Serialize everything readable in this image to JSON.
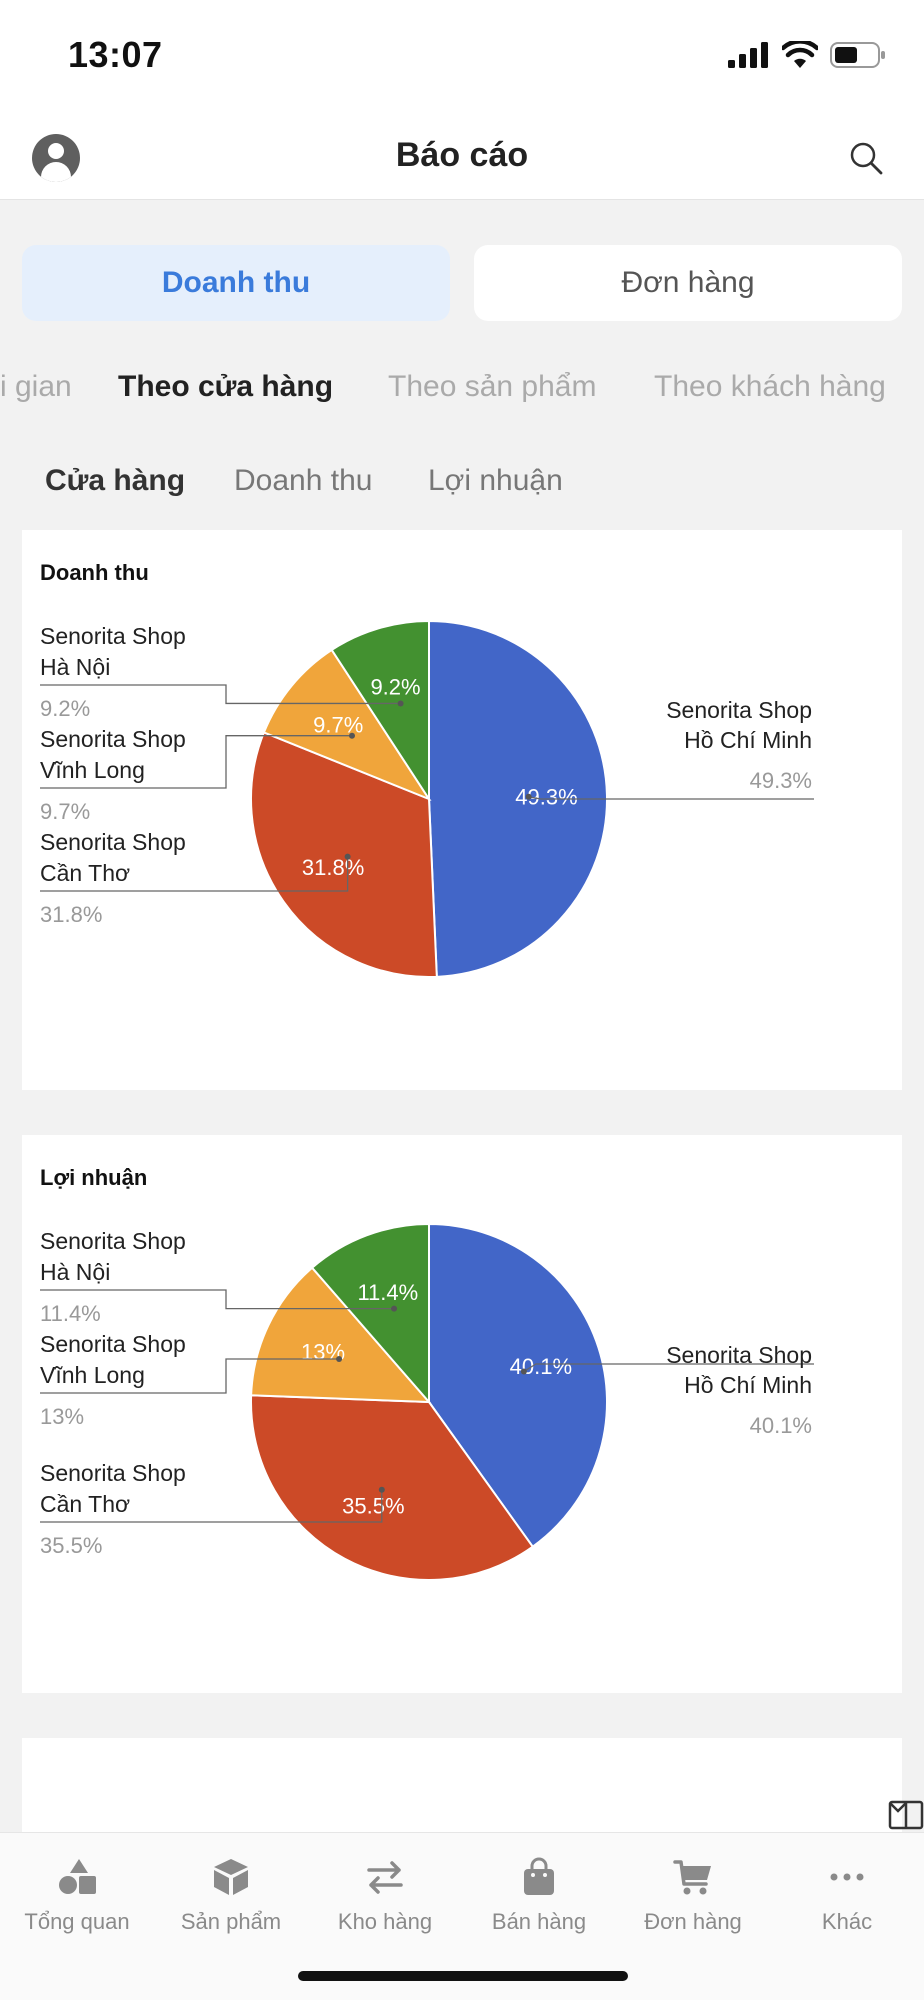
{
  "status_bar": {
    "time": "13:07",
    "icons": [
      "signal-icon",
      "wifi-icon",
      "battery-icon"
    ]
  },
  "header": {
    "title": "Báo cáo",
    "left_icon": "user-avatar-icon",
    "right_icon": "search-icon"
  },
  "segment": {
    "active": "Doanh thu",
    "inactive": "Đơn hàng",
    "active_color": "#3a7bdb",
    "active_bg": "#e5effc"
  },
  "report_tabs": {
    "items": [
      "i gian",
      "Theo cửa hàng",
      "Theo sản phẩm",
      "Theo khách hàng"
    ],
    "selected": "Theo cửa hàng"
  },
  "sub_tabs": {
    "items": [
      "Cửa hàng",
      "Doanh thu",
      "Lợi nhuận"
    ],
    "selected": "Cửa hàng"
  },
  "chart_data": [
    {
      "type": "pie",
      "title": "Doanh thu",
      "slices": [
        {
          "label_line1": "Senorita Shop",
          "label_line2": "Hồ Chí Minh",
          "value": 49.3,
          "label": "49.3%",
          "color": "#4266c8"
        },
        {
          "label_line1": "Senorita Shop",
          "label_line2": "Cần Thơ",
          "value": 31.8,
          "label": "31.8%",
          "color": "#cc4a27"
        },
        {
          "label_line1": "Senorita Shop",
          "label_line2": "Vĩnh Long",
          "value": 9.7,
          "label": "9.7%",
          "color": "#f0a53b"
        },
        {
          "label_line1": "Senorita Shop",
          "label_line2": "Hà Nội",
          "value": 9.2,
          "label": "9.2%",
          "color": "#439130"
        }
      ]
    },
    {
      "type": "pie",
      "title": "Lợi nhuận",
      "slices": [
        {
          "label_line1": "Senorita Shop",
          "label_line2": "Hồ Chí Minh",
          "value": 40.1,
          "label": "40.1%",
          "color": "#4266c8"
        },
        {
          "label_line1": "Senorita Shop",
          "label_line2": "Cần Thơ",
          "value": 35.5,
          "label": "35.5%",
          "color": "#cc4a27"
        },
        {
          "label_line1": "Senorita Shop",
          "label_line2": "Vĩnh Long",
          "value": 13,
          "label": "13%",
          "color": "#f0a53b"
        },
        {
          "label_line1": "Senorita Shop",
          "label_line2": "Hà Nội",
          "value": 11.4,
          "label": "11.4%",
          "color": "#439130"
        }
      ]
    }
  ],
  "table_card": {
    "view_icon": "columns-icon",
    "dropdown_icon": "chevron-down-icon"
  },
  "bottom_nav": [
    {
      "label": "Tổng quan",
      "icon": "shapes-icon"
    },
    {
      "label": "Sản phẩm",
      "icon": "box-icon"
    },
    {
      "label": "Kho hàng",
      "icon": "transfer-arrows-icon"
    },
    {
      "label": "Bán hàng",
      "icon": "shopping-bag-icon"
    },
    {
      "label": "Đơn hàng",
      "icon": "cart-icon"
    },
    {
      "label": "Khác",
      "icon": "more-dots-icon"
    }
  ]
}
